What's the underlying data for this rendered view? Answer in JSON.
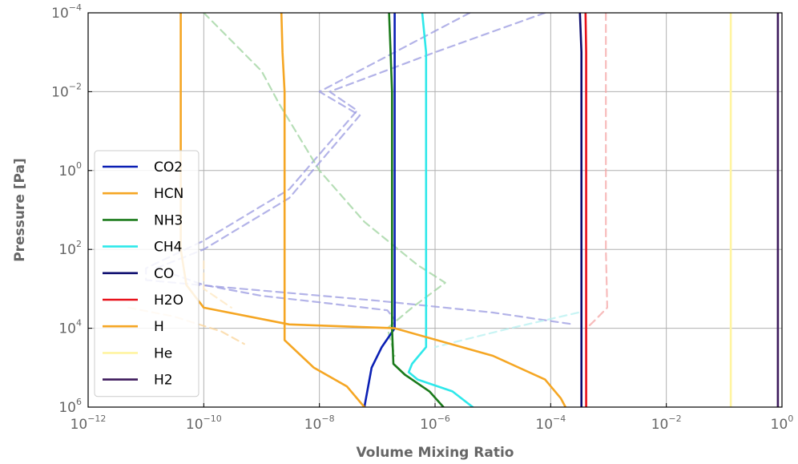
{
  "chart_data": {
    "type": "line",
    "title": "",
    "xlabel": "Volume Mixing Ratio",
    "ylabel": "Pressure [Pa]",
    "xscale": "log",
    "yscale": "log",
    "y_inverted": true,
    "xlim": [
      1e-12,
      1
    ],
    "ylim": [
      1000000.0,
      0.0001
    ],
    "grid": true,
    "legend_position": "lower-left",
    "xticks": [
      {
        "base": "10",
        "exp": "−12",
        "value": 1e-12
      },
      {
        "base": "10",
        "exp": "−10",
        "value": 1e-10
      },
      {
        "base": "10",
        "exp": "−8",
        "value": 1e-08
      },
      {
        "base": "10",
        "exp": "−6",
        "value": 1e-06
      },
      {
        "base": "10",
        "exp": "−4",
        "value": 0.0001
      },
      {
        "base": "10",
        "exp": "−2",
        "value": 0.01
      },
      {
        "base": "10",
        "exp": "0",
        "value": 1
      }
    ],
    "yticks": [
      {
        "base": "10",
        "exp": "−4",
        "value": 0.0001
      },
      {
        "base": "10",
        "exp": "−2",
        "value": 0.01
      },
      {
        "base": "10",
        "exp": "0",
        "value": 1
      },
      {
        "base": "10",
        "exp": "2",
        "value": 100
      },
      {
        "base": "10",
        "exp": "4",
        "value": 10000.0
      },
      {
        "base": "10",
        "exp": "6",
        "value": 1000000.0
      }
    ],
    "series": [
      {
        "name": "CO2",
        "color": "#0a1fb4",
        "style": "solid",
        "in_legend": true,
        "points": [
          [
            2e-07,
            0.0001
          ],
          [
            2e-07,
            0.01
          ],
          [
            2e-07,
            1
          ],
          [
            2e-07,
            100
          ],
          [
            2e-07,
            10000.0
          ],
          [
            1.2e-07,
            30000.0
          ],
          [
            8e-08,
            100000.0
          ],
          [
            6e-08,
            1000000.0
          ]
        ]
      },
      {
        "name": "HCN",
        "color": "#f5a623",
        "style": "solid",
        "in_legend": true,
        "points": [
          [
            2.2e-09,
            0.0001
          ],
          [
            2.3e-09,
            0.001
          ],
          [
            2.5e-09,
            0.01
          ],
          [
            2.5e-09,
            100
          ],
          [
            2.5e-09,
            10000.0
          ],
          [
            2.5e-09,
            20000.0
          ],
          [
            8e-09,
            100000.0
          ],
          [
            3e-08,
            300000.0
          ],
          [
            6e-08,
            1000000.0
          ]
        ]
      },
      {
        "name": "NH3",
        "color": "#1a7a1a",
        "style": "solid",
        "in_legend": true,
        "points": [
          [
            1.6e-07,
            0.0001
          ],
          [
            1.7e-07,
            0.001
          ],
          [
            1.8e-07,
            0.01
          ],
          [
            1.8e-07,
            1
          ],
          [
            1.8e-07,
            100
          ],
          [
            1.8e-07,
            10000.0
          ],
          [
            1.9e-07,
            80000.0
          ],
          [
            3e-07,
            150000.0
          ],
          [
            8e-07,
            400000.0
          ],
          [
            1.4e-06,
            1000000.0
          ]
        ]
      },
      {
        "name": "CH4",
        "color": "#2ee8ea",
        "style": "solid",
        "in_legend": true,
        "points": [
          [
            6e-07,
            0.0001
          ],
          [
            7e-07,
            0.001
          ],
          [
            7e-07,
            0.01
          ],
          [
            7e-07,
            1
          ],
          [
            7e-07,
            100
          ],
          [
            7e-07,
            10000.0
          ],
          [
            7e-07,
            30000.0
          ],
          [
            4e-07,
            80000.0
          ],
          [
            3.5e-07,
            130000.0
          ],
          [
            5e-07,
            200000.0
          ],
          [
            2e-06,
            400000.0
          ],
          [
            4.5e-06,
            1000000.0
          ]
        ]
      },
      {
        "name": "CO",
        "color": "#0b0b6e",
        "style": "solid",
        "in_legend": true,
        "points": [
          [
            0.00032,
            0.0001
          ],
          [
            0.00034,
            0.001
          ],
          [
            0.00034,
            1
          ],
          [
            0.00034,
            10000.0
          ],
          [
            0.00034,
            1000000.0
          ]
        ]
      },
      {
        "name": "H2O",
        "color": "#e8111a",
        "style": "solid",
        "in_legend": true,
        "points": [
          [
            0.0004,
            0.0001
          ],
          [
            0.00041,
            0.001
          ],
          [
            0.00041,
            1
          ],
          [
            0.00041,
            10000.0
          ],
          [
            0.00041,
            1000000.0
          ]
        ]
      },
      {
        "name": "H",
        "color": "#f5a623",
        "style": "solid",
        "in_legend": true,
        "points": [
          [
            4e-11,
            0.0001
          ],
          [
            4e-11,
            0.01
          ],
          [
            4e-11,
            1
          ],
          [
            4e-11,
            100
          ],
          [
            5e-11,
            800
          ],
          [
            1e-10,
            3000
          ],
          [
            3e-09,
            8000
          ],
          [
            2e-07,
            10000.0
          ],
          [
            1e-05,
            50000.0
          ],
          [
            8e-05,
            200000.0
          ],
          [
            0.00015,
            600000.0
          ],
          [
            0.00018,
            1000000.0
          ]
        ]
      },
      {
        "name": "He",
        "color": "#fff4a0",
        "style": "solid",
        "in_legend": true,
        "points": [
          [
            0.13,
            0.0001
          ],
          [
            0.13,
            1000000.0
          ]
        ]
      },
      {
        "name": "H2",
        "color": "#3d1a5c",
        "style": "solid",
        "in_legend": true,
        "points": [
          [
            0.85,
            0.0001
          ],
          [
            0.85,
            1000000.0
          ]
        ]
      },
      {
        "name": "",
        "color": "#9a9ae0",
        "style": "dashed",
        "in_legend": false,
        "points": [
          [
            8e-05,
            0.0001
          ],
          [
            1e-06,
            0.001
          ],
          [
            1.5e-08,
            0.01
          ],
          [
            4.5e-08,
            0.03
          ],
          [
            3e-09,
            3
          ],
          [
            1e-10,
            60
          ],
          [
            1e-11,
            300
          ],
          [
            1e-11,
            600
          ],
          [
            2e-10,
            900
          ],
          [
            1e-07,
            2000
          ],
          [
            1e-05,
            4000
          ],
          [
            0.00025,
            8000
          ]
        ]
      },
      {
        "name": "",
        "color": "#9a9ae0",
        "style": "dashed",
        "in_legend": false,
        "points": [
          [
            4e-06,
            0.0001
          ],
          [
            2e-07,
            0.001
          ],
          [
            1e-08,
            0.01
          ],
          [
            5e-08,
            0.04
          ],
          [
            3e-09,
            5
          ],
          [
            1e-10,
            100
          ],
          [
            1.5e-11,
            300
          ],
          [
            1e-10,
            800
          ],
          [
            1e-09,
            1500
          ],
          [
            1e-08,
            2200
          ],
          [
            1.5e-07,
            3500
          ],
          [
            2e-07,
            6000
          ]
        ]
      },
      {
        "name": "",
        "color": "#9dd39d",
        "style": "dashed",
        "in_legend": false,
        "points": [
          [
            1e-10,
            0.0001
          ],
          [
            1e-09,
            0.003
          ],
          [
            2e-09,
            0.02
          ],
          [
            1e-08,
            1
          ],
          [
            6e-08,
            20
          ],
          [
            5e-07,
            250
          ],
          [
            1.5e-06,
            700
          ],
          [
            4e-07,
            3000
          ],
          [
            1.5e-07,
            10000.0
          ],
          [
            2e-07,
            50000.0
          ]
        ]
      },
      {
        "name": "",
        "color": "#f4a5a5",
        "style": "dashed",
        "in_legend": false,
        "points": [
          [
            0.0009,
            0.0001
          ],
          [
            0.0009,
            0.001
          ],
          [
            0.0009,
            1
          ],
          [
            0.0009,
            100
          ],
          [
            0.00095,
            3000
          ],
          [
            0.0006,
            6000
          ],
          [
            0.00045,
            9000
          ]
        ]
      },
      {
        "name": "",
        "color": "#fad49a",
        "style": "dashed",
        "in_legend": false,
        "points": [
          [
            5e-12,
            3000
          ],
          [
            3e-11,
            5000
          ],
          [
            2e-10,
            12000.0
          ],
          [
            5e-10,
            25000.0
          ]
        ]
      },
      {
        "name": "",
        "color": "#fde7c0",
        "style": "dashed",
        "in_legend": false,
        "points": [
          [
            1e-10,
            200
          ],
          [
            1e-10,
            1000
          ],
          [
            3e-10,
            3000
          ]
        ]
      },
      {
        "name": "",
        "color": "#b6f0f0",
        "style": "dashed",
        "in_legend": false,
        "points": [
          [
            0.0003,
            4000
          ],
          [
            2e-05,
            10000.0
          ],
          [
            3e-06,
            20000.0
          ],
          [
            1e-06,
            30000.0
          ]
        ]
      }
    ]
  }
}
